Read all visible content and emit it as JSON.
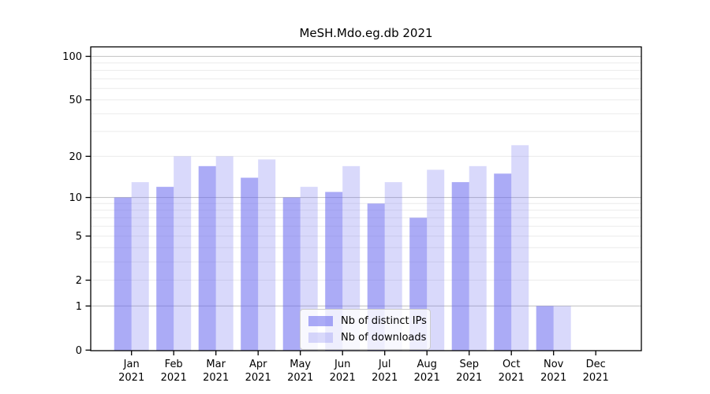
{
  "chart_data": {
    "type": "bar",
    "title": "MeSH.Mdo.eg.db 2021",
    "categories": [
      "Jan",
      "Feb",
      "Mar",
      "Apr",
      "May",
      "Jun",
      "Jul",
      "Aug",
      "Sep",
      "Oct",
      "Nov",
      "Dec"
    ],
    "category_year": "2021",
    "series": [
      {
        "name": "Nb of distinct IPs",
        "color": "rgba(102,102,238,0.55)",
        "values": [
          10,
          12,
          17,
          14,
          10,
          11,
          9,
          7,
          13,
          15,
          1,
          0
        ]
      },
      {
        "name": "Nb of downloads",
        "color": "rgba(102,102,238,0.25)",
        "values": [
          13,
          20,
          20,
          19,
          12,
          17,
          13,
          16,
          17,
          24,
          1,
          0
        ]
      }
    ],
    "yscale": "log1p",
    "ylim": [
      0,
      117
    ],
    "yticks": [
      0,
      1,
      2,
      5,
      10,
      20,
      50,
      100
    ],
    "major_gridlines": [
      1,
      10,
      100
    ],
    "minor_gridlines": [
      2,
      3,
      4,
      5,
      6,
      7,
      8,
      9,
      20,
      30,
      40,
      50,
      60,
      70,
      80,
      90
    ],
    "grid": true,
    "legend_position": "lower center"
  },
  "colors": {
    "major_grid": "#c6c6c6",
    "minor_grid": "#ebebeb",
    "axis": "#000000",
    "text": "#000000",
    "background": "#ffffff"
  }
}
